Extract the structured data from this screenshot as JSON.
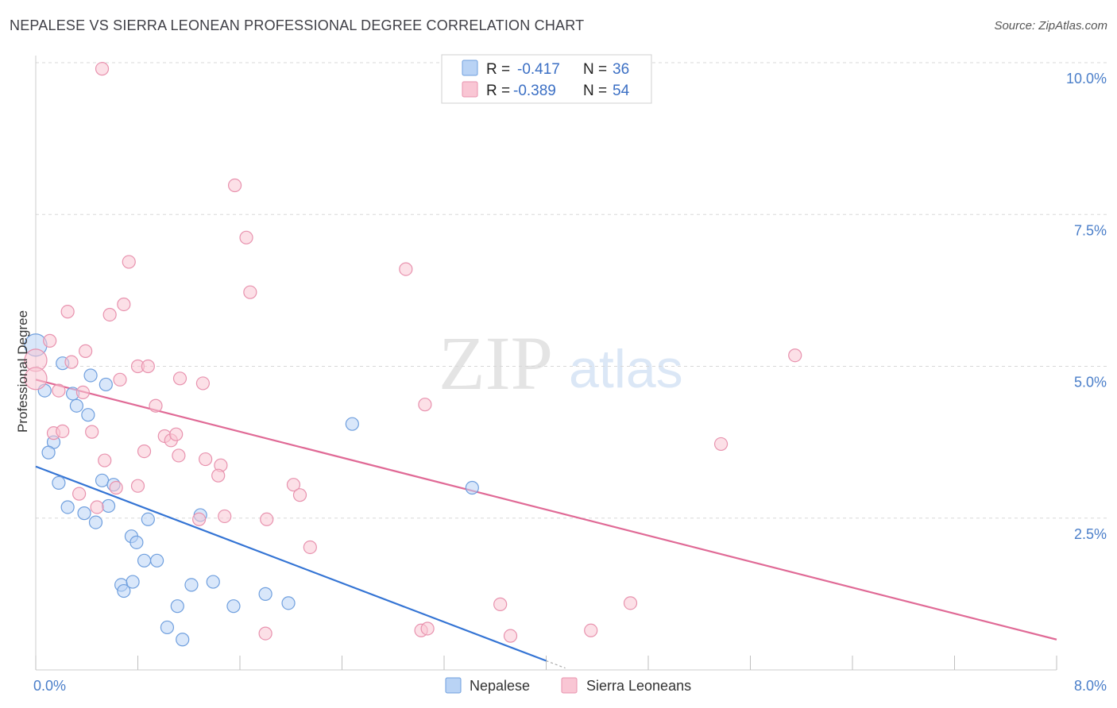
{
  "title": "NEPALESE VS SIERRA LEONEAN PROFESSIONAL DEGREE CORRELATION CHART",
  "source": "Source: ZipAtlas.com",
  "watermark": {
    "zip": "ZIP",
    "atlas": "atlas"
  },
  "colors": {
    "nepalese_fill": "#b9d3f5",
    "nepalese_stroke": "#6f9fde",
    "nepalese_line": "#3474d4",
    "sierra_fill": "#f9c6d4",
    "sierra_stroke": "#e892ae",
    "sierra_line": "#e06a96",
    "tick_text": "#4a7ec9",
    "grid": "#d8d8d8"
  },
  "stats_legend": [
    {
      "r_label": "R =",
      "r_value": "-0.417",
      "n_label": "N =",
      "n_value": "36"
    },
    {
      "r_label": "R =",
      "r_value": "-0.389",
      "n_label": "N =",
      "n_value": "54"
    }
  ],
  "chart_data": {
    "type": "scatter",
    "title": "NEPALESE VS SIERRA LEONEAN PROFESSIONAL DEGREE CORRELATION CHART",
    "xlabel": "",
    "ylabel": "Professional Degree",
    "xlim": [
      0,
      8
    ],
    "ylim": [
      0,
      10.5
    ],
    "x_ticks": [
      {
        "value": 0,
        "label": "0.0%"
      },
      {
        "value": 8,
        "label": "8.0%"
      }
    ],
    "y_ticks": [
      {
        "value": 2.5,
        "label": "2.5%"
      },
      {
        "value": 5,
        "label": "5.0%"
      },
      {
        "value": 7.5,
        "label": "7.5%"
      },
      {
        "value": 10,
        "label": "10.0%"
      }
    ],
    "grid": true,
    "legend": [
      "Nepalese",
      "Sierra Leoneans"
    ],
    "series": [
      {
        "name": "Nepalese",
        "r": -0.417,
        "n": 36,
        "trend": {
          "x0": 0,
          "y0": 3.35,
          "x1": 4.0,
          "y1": 0.15
        },
        "trend_dashed": {
          "x0": 4.0,
          "y0": 0.15,
          "x1": 4.15,
          "y1": 0.03
        },
        "points": [
          {
            "x": 0.0,
            "y": 5.35,
            "big": true
          },
          {
            "x": 0.07,
            "y": 4.6
          },
          {
            "x": 0.21,
            "y": 5.05
          },
          {
            "x": 0.29,
            "y": 4.55
          },
          {
            "x": 0.32,
            "y": 4.35
          },
          {
            "x": 0.41,
            "y": 4.2
          },
          {
            "x": 0.43,
            "y": 4.85
          },
          {
            "x": 0.55,
            "y": 4.7
          },
          {
            "x": 0.14,
            "y": 3.75
          },
          {
            "x": 0.1,
            "y": 3.58
          },
          {
            "x": 0.18,
            "y": 3.08
          },
          {
            "x": 0.52,
            "y": 3.12
          },
          {
            "x": 0.61,
            "y": 3.05
          },
          {
            "x": 0.25,
            "y": 2.68
          },
          {
            "x": 0.38,
            "y": 2.58
          },
          {
            "x": 0.57,
            "y": 2.7
          },
          {
            "x": 0.47,
            "y": 2.43
          },
          {
            "x": 0.88,
            "y": 2.48
          },
          {
            "x": 0.75,
            "y": 2.2
          },
          {
            "x": 0.79,
            "y": 2.1
          },
          {
            "x": 0.85,
            "y": 1.8
          },
          {
            "x": 0.95,
            "y": 1.8
          },
          {
            "x": 0.67,
            "y": 1.4
          },
          {
            "x": 0.76,
            "y": 1.45
          },
          {
            "x": 0.69,
            "y": 1.3
          },
          {
            "x": 1.22,
            "y": 1.4
          },
          {
            "x": 1.39,
            "y": 1.45
          },
          {
            "x": 1.29,
            "y": 2.55
          },
          {
            "x": 1.8,
            "y": 1.25
          },
          {
            "x": 1.55,
            "y": 1.05
          },
          {
            "x": 1.98,
            "y": 1.1
          },
          {
            "x": 1.11,
            "y": 1.05
          },
          {
            "x": 1.03,
            "y": 0.7
          },
          {
            "x": 1.15,
            "y": 0.5
          },
          {
            "x": 2.48,
            "y": 4.05
          },
          {
            "x": 3.42,
            "y": 3.0
          }
        ]
      },
      {
        "name": "Sierra Leoneans",
        "r": -0.389,
        "n": 54,
        "trend": {
          "x0": 0,
          "y0": 4.78,
          "x1": 8.0,
          "y1": 0.5
        },
        "points": [
          {
            "x": 0.0,
            "y": 5.1,
            "big": true
          },
          {
            "x": 0.0,
            "y": 4.8,
            "big": true
          },
          {
            "x": 0.52,
            "y": 9.9
          },
          {
            "x": 1.56,
            "y": 7.98
          },
          {
            "x": 1.65,
            "y": 7.12
          },
          {
            "x": 0.73,
            "y": 6.72
          },
          {
            "x": 1.68,
            "y": 6.22
          },
          {
            "x": 2.9,
            "y": 6.6
          },
          {
            "x": 0.69,
            "y": 6.02
          },
          {
            "x": 0.58,
            "y": 5.85
          },
          {
            "x": 0.25,
            "y": 5.9
          },
          {
            "x": 0.11,
            "y": 5.42
          },
          {
            "x": 0.39,
            "y": 5.25
          },
          {
            "x": 0.28,
            "y": 5.07
          },
          {
            "x": 0.8,
            "y": 5.0
          },
          {
            "x": 0.88,
            "y": 5.0
          },
          {
            "x": 0.66,
            "y": 4.78
          },
          {
            "x": 1.13,
            "y": 4.8
          },
          {
            "x": 1.31,
            "y": 4.72
          },
          {
            "x": 0.18,
            "y": 4.6
          },
          {
            "x": 0.37,
            "y": 4.57
          },
          {
            "x": 0.94,
            "y": 4.35
          },
          {
            "x": 3.05,
            "y": 4.37
          },
          {
            "x": 5.95,
            "y": 5.18
          },
          {
            "x": 0.14,
            "y": 3.9
          },
          {
            "x": 0.21,
            "y": 3.93
          },
          {
            "x": 0.44,
            "y": 3.92
          },
          {
            "x": 1.01,
            "y": 3.85
          },
          {
            "x": 1.06,
            "y": 3.78
          },
          {
            "x": 1.1,
            "y": 3.88
          },
          {
            "x": 5.37,
            "y": 3.72
          },
          {
            "x": 0.85,
            "y": 3.6
          },
          {
            "x": 0.54,
            "y": 3.45
          },
          {
            "x": 1.12,
            "y": 3.53
          },
          {
            "x": 1.33,
            "y": 3.47
          },
          {
            "x": 1.45,
            "y": 3.37
          },
          {
            "x": 1.43,
            "y": 3.2
          },
          {
            "x": 0.63,
            "y": 3.0
          },
          {
            "x": 0.8,
            "y": 3.03
          },
          {
            "x": 2.02,
            "y": 3.05
          },
          {
            "x": 0.34,
            "y": 2.9
          },
          {
            "x": 2.07,
            "y": 2.88
          },
          {
            "x": 0.48,
            "y": 2.68
          },
          {
            "x": 1.48,
            "y": 2.53
          },
          {
            "x": 1.81,
            "y": 2.48
          },
          {
            "x": 1.28,
            "y": 2.48
          },
          {
            "x": 2.15,
            "y": 2.02
          },
          {
            "x": 3.64,
            "y": 1.08
          },
          {
            "x": 4.66,
            "y": 1.1
          },
          {
            "x": 1.8,
            "y": 0.6
          },
          {
            "x": 3.02,
            "y": 0.65
          },
          {
            "x": 3.07,
            "y": 0.68
          },
          {
            "x": 3.72,
            "y": 0.56
          },
          {
            "x": 4.35,
            "y": 0.65
          }
        ]
      }
    ]
  }
}
